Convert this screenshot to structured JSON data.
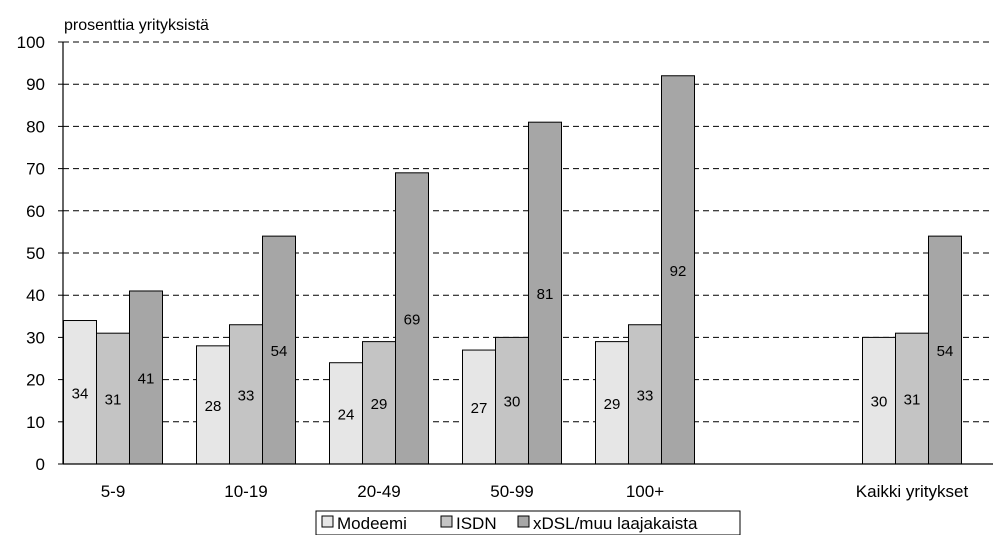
{
  "chart_data": {
    "type": "bar",
    "title": "",
    "xlabel": "",
    "ylabel": "prosenttia yrityksistä",
    "ylim": [
      0,
      100
    ],
    "yticks": [
      0,
      10,
      20,
      30,
      40,
      50,
      60,
      70,
      80,
      90,
      100
    ],
    "grid": true,
    "legend_position": "bottom",
    "categories": [
      "5-9",
      "10-19",
      "20-49",
      "50-99",
      "100+",
      "Kaikki yritykset"
    ],
    "series": [
      {
        "name": "Modeemi",
        "values": [
          34,
          28,
          24,
          27,
          29,
          30
        ],
        "color": "#e6e6e6"
      },
      {
        "name": "ISDN",
        "values": [
          31,
          33,
          29,
          30,
          33,
          31
        ],
        "color": "#c4c4c4"
      },
      {
        "name": "xDSL/muu laajakaista",
        "values": [
          41,
          54,
          69,
          81,
          92,
          54
        ],
        "color": "#a6a6a6"
      }
    ]
  }
}
